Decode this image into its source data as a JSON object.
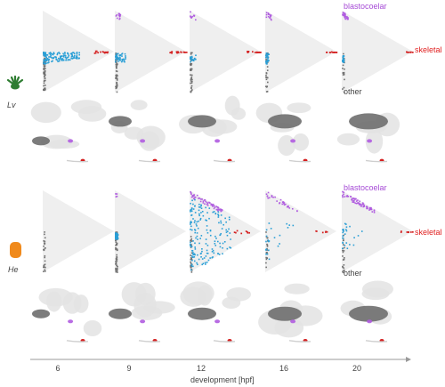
{
  "species": [
    {
      "id": "lv",
      "label": "Lv",
      "icon": "sea-urchin-larva-icon",
      "icon_color": "#2f7d32"
    },
    {
      "id": "he",
      "label": "He",
      "icon": "sea-urchin-embryo-icon",
      "icon_color": "#f08a1c"
    }
  ],
  "vertex_labels": {
    "top": "blastocoelar",
    "right": "skeletal",
    "bottom": "other"
  },
  "x_axis": {
    "title": "development [hpf]",
    "ticks": [
      "6",
      "9",
      "12",
      "16",
      "20"
    ]
  },
  "colors": {
    "blastocoelar": "#b05ce0",
    "skeletal": "#d42020",
    "other": "#707070",
    "intermediate": "#2a9fd6",
    "triangle_fill": "#efefef",
    "umap_cloud": "#e3e3e3"
  }
}
